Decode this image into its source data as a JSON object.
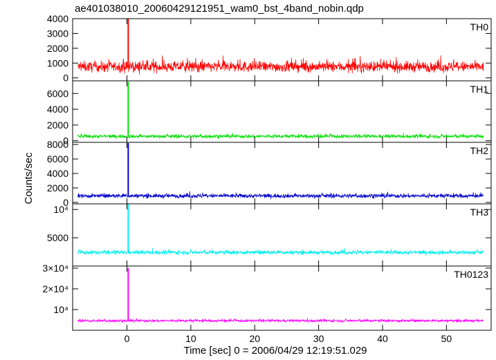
{
  "chart_data": {
    "type": "line",
    "title": "ae401038010_20060429121951_wam0_bst_4band_nobin.qdp",
    "xlabel": "Time [sec] 0 = 2006/04/29 12:19:51.029",
    "ylabel": "Counts/sec",
    "xlim": [
      -8.5,
      57
    ],
    "x_ticks": [
      0,
      10,
      20,
      30,
      40,
      50
    ],
    "x_tick_labels": [
      "0",
      "10",
      "20",
      "30",
      "40",
      "50"
    ],
    "data_range_x": [
      -7.7,
      55.8
    ],
    "grid": false,
    "legend": "none",
    "panels": [
      {
        "name": "TH0",
        "color": "#ff0000",
        "ylim": [
          -200,
          4000
        ],
        "y_ticks": [
          0,
          1000,
          2000,
          3000,
          4000
        ],
        "y_tick_labels": [
          "0",
          "1000",
          "2000",
          "3000",
          "4000"
        ],
        "baseline": 750,
        "noise": 320,
        "peak": {
          "x": 0.2,
          "y": 4000
        }
      },
      {
        "name": "TH1",
        "color": "#00e000",
        "ylim": [
          -200,
          7600
        ],
        "y_ticks": [
          0,
          2000,
          4000,
          6000
        ],
        "y_tick_labels": [
          "0",
          "2000",
          "4000",
          "6000"
        ],
        "baseline": 560,
        "noise": 200,
        "peak": {
          "x": 0.2,
          "y": 7500
        }
      },
      {
        "name": "TH2",
        "color": "#0000cc",
        "ylim": [
          -200,
          8300
        ],
        "y_ticks": [
          0,
          2000,
          4000,
          6000,
          8000
        ],
        "y_tick_labels": [
          "0",
          "2000",
          "4000",
          "6000",
          "8000"
        ],
        "baseline": 900,
        "noise": 260,
        "peak": {
          "x": 0.2,
          "y": 8200
        }
      },
      {
        "name": "TH3",
        "color": "#00eeee",
        "ylim": [
          0,
          11000
        ],
        "y_ticks": [
          5000,
          10000
        ],
        "y_tick_labels": [
          "5000",
          "10⁴"
        ],
        "baseline": 2400,
        "noise": 320,
        "peak": {
          "x": 0.2,
          "y": 11000
        }
      },
      {
        "name": "TH0123",
        "color": "#ff00ff",
        "ylim": [
          0,
          31000
        ],
        "y_ticks": [
          10000,
          20000,
          30000
        ],
        "y_tick_labels": [
          "10⁴",
          "2×10⁴",
          "3×10⁴"
        ],
        "baseline": 4600,
        "noise": 550,
        "peak": {
          "x": 0.2,
          "y": 30000
        }
      }
    ]
  }
}
